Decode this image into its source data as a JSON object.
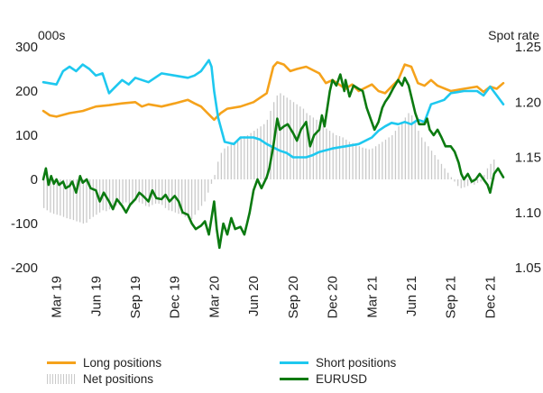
{
  "chart_data": {
    "type": "line",
    "left_axis_unit": "000s",
    "right_axis_unit": "Spot rate",
    "left_ylim": [
      -200,
      300
    ],
    "left_ticks": [
      "300",
      "200",
      "100",
      "0",
      "-100",
      "-200"
    ],
    "right_ylim": [
      1.05,
      1.25
    ],
    "right_ticks": [
      "1.25",
      "1.20",
      "1.15",
      "1.10",
      "1.05"
    ],
    "x_range": [
      0,
      35
    ],
    "x_ticks": [
      {
        "label": "Mar 19",
        "x": 1
      },
      {
        "label": "Jun 19",
        "x": 4
      },
      {
        "label": "Sep 19",
        "x": 7
      },
      {
        "label": "Dec 19",
        "x": 10
      },
      {
        "label": "Mar 20",
        "x": 13
      },
      {
        "label": "Jun 20",
        "x": 16
      },
      {
        "label": "Sep 20",
        "x": 19
      },
      {
        "label": "Dec 20",
        "x": 22
      },
      {
        "label": "Mar 21",
        "x": 25
      },
      {
        "label": "Jun 21",
        "x": 28
      },
      {
        "label": "Sep 21",
        "x": 31
      },
      {
        "label": "Dec 21",
        "x": 34
      }
    ],
    "series": [
      {
        "name": "Long positions",
        "axis": "left",
        "color": "#f5a21b",
        "points": [
          [
            0,
            155
          ],
          [
            0.5,
            145
          ],
          [
            1,
            142
          ],
          [
            2,
            150
          ],
          [
            3,
            155
          ],
          [
            4,
            165
          ],
          [
            5,
            168
          ],
          [
            6,
            172
          ],
          [
            7,
            175
          ],
          [
            7.5,
            165
          ],
          [
            8,
            170
          ],
          [
            9,
            165
          ],
          [
            10,
            172
          ],
          [
            11,
            180
          ],
          [
            11.5,
            172
          ],
          [
            12,
            165
          ],
          [
            12.5,
            150
          ],
          [
            13,
            135
          ],
          [
            13.5,
            150
          ],
          [
            14,
            160
          ],
          [
            15,
            165
          ],
          [
            16,
            175
          ],
          [
            17,
            195
          ],
          [
            17.5,
            255
          ],
          [
            17.8,
            265
          ],
          [
            18.3,
            260
          ],
          [
            18.8,
            245
          ],
          [
            19.3,
            250
          ],
          [
            20,
            255
          ],
          [
            21,
            240
          ],
          [
            21.5,
            218
          ],
          [
            22,
            225
          ],
          [
            23,
            205
          ],
          [
            23.5,
            215
          ],
          [
            24,
            200
          ],
          [
            25,
            215
          ],
          [
            25.5,
            200
          ],
          [
            26,
            195
          ],
          [
            26.5,
            210
          ],
          [
            27,
            225
          ],
          [
            27.5,
            260
          ],
          [
            28,
            255
          ],
          [
            28.5,
            218
          ],
          [
            29,
            212
          ],
          [
            29.5,
            225
          ],
          [
            30,
            212
          ],
          [
            31,
            200
          ],
          [
            32,
            205
          ],
          [
            33,
            210
          ],
          [
            33.5,
            198
          ],
          [
            34,
            210
          ],
          [
            34.5,
            205
          ],
          [
            35,
            218
          ]
        ]
      },
      {
        "name": "Short positions",
        "axis": "left",
        "color": "#1ec8ef",
        "points": [
          [
            0,
            220
          ],
          [
            1,
            215
          ],
          [
            1.5,
            245
          ],
          [
            2,
            255
          ],
          [
            2.5,
            245
          ],
          [
            3,
            260
          ],
          [
            3.5,
            250
          ],
          [
            4,
            235
          ],
          [
            4.5,
            240
          ],
          [
            5,
            195
          ],
          [
            5.5,
            210
          ],
          [
            6,
            225
          ],
          [
            6.5,
            215
          ],
          [
            7,
            230
          ],
          [
            8,
            220
          ],
          [
            9,
            240
          ],
          [
            10,
            235
          ],
          [
            11,
            230
          ],
          [
            11.5,
            235
          ],
          [
            12,
            245
          ],
          [
            12.6,
            270
          ],
          [
            12.8,
            255
          ],
          [
            13,
            200
          ],
          [
            13.3,
            140
          ],
          [
            13.8,
            85
          ],
          [
            14.5,
            80
          ],
          [
            15,
            95
          ],
          [
            16,
            95
          ],
          [
            16.5,
            90
          ],
          [
            17,
            80
          ],
          [
            18,
            65
          ],
          [
            18.5,
            60
          ],
          [
            19,
            50
          ],
          [
            20,
            50
          ],
          [
            20.5,
            55
          ],
          [
            21,
            62
          ],
          [
            22,
            70
          ],
          [
            23,
            75
          ],
          [
            24,
            80
          ],
          [
            25,
            95
          ],
          [
            25.5,
            110
          ],
          [
            26,
            120
          ],
          [
            26.5,
            128
          ],
          [
            27,
            125
          ],
          [
            27.5,
            130
          ],
          [
            28,
            125
          ],
          [
            28.5,
            135
          ],
          [
            29,
            130
          ],
          [
            29.5,
            170
          ],
          [
            30,
            175
          ],
          [
            30.5,
            180
          ],
          [
            31,
            195
          ],
          [
            32,
            200
          ],
          [
            33,
            200
          ],
          [
            33.5,
            190
          ],
          [
            34,
            210
          ],
          [
            34.5,
            190
          ],
          [
            35,
            170
          ]
        ]
      },
      {
        "name": "EURUSD",
        "axis": "right",
        "color": "#0b7a10",
        "points": [
          [
            0,
            1.13
          ],
          [
            0.2,
            1.14
          ],
          [
            0.4,
            1.125
          ],
          [
            0.6,
            1.133
          ],
          [
            0.8,
            1.126
          ],
          [
            1,
            1.13
          ],
          [
            1.2,
            1.125
          ],
          [
            1.5,
            1.128
          ],
          [
            1.7,
            1.122
          ],
          [
            2,
            1.124
          ],
          [
            2.2,
            1.128
          ],
          [
            2.5,
            1.118
          ],
          [
            2.8,
            1.133
          ],
          [
            3,
            1.127
          ],
          [
            3.3,
            1.13
          ],
          [
            3.6,
            1.122
          ],
          [
            4,
            1.12
          ],
          [
            4.3,
            1.11
          ],
          [
            4.6,
            1.118
          ],
          [
            5,
            1.11
          ],
          [
            5.3,
            1.103
          ],
          [
            5.6,
            1.112
          ],
          [
            6,
            1.106
          ],
          [
            6.3,
            1.1
          ],
          [
            6.6,
            1.107
          ],
          [
            7,
            1.112
          ],
          [
            7.3,
            1.118
          ],
          [
            7.6,
            1.115
          ],
          [
            8,
            1.11
          ],
          [
            8.3,
            1.12
          ],
          [
            8.6,
            1.113
          ],
          [
            9,
            1.112
          ],
          [
            9.3,
            1.116
          ],
          [
            9.6,
            1.11
          ],
          [
            10,
            1.115
          ],
          [
            10.3,
            1.11
          ],
          [
            10.6,
            1.1
          ],
          [
            11,
            1.098
          ],
          [
            11.3,
            1.09
          ],
          [
            11.6,
            1.085
          ],
          [
            12,
            1.088
          ],
          [
            12.3,
            1.092
          ],
          [
            12.6,
            1.08
          ],
          [
            12.8,
            1.095
          ],
          [
            13,
            1.11
          ],
          [
            13.2,
            1.085
          ],
          [
            13.4,
            1.068
          ],
          [
            13.7,
            1.09
          ],
          [
            14,
            1.08
          ],
          [
            14.3,
            1.095
          ],
          [
            14.6,
            1.085
          ],
          [
            15,
            1.087
          ],
          [
            15.3,
            1.08
          ],
          [
            15.5,
            1.09
          ],
          [
            15.7,
            1.1
          ],
          [
            16,
            1.12
          ],
          [
            16.3,
            1.13
          ],
          [
            16.6,
            1.122
          ],
          [
            17,
            1.132
          ],
          [
            17.2,
            1.14
          ],
          [
            17.5,
            1.16
          ],
          [
            17.8,
            1.185
          ],
          [
            18,
            1.175
          ],
          [
            18.3,
            1.178
          ],
          [
            18.6,
            1.18
          ],
          [
            19,
            1.172
          ],
          [
            19.3,
            1.165
          ],
          [
            19.6,
            1.175
          ],
          [
            20,
            1.182
          ],
          [
            20.3,
            1.16
          ],
          [
            20.6,
            1.17
          ],
          [
            21,
            1.175
          ],
          [
            21.2,
            1.188
          ],
          [
            21.4,
            1.178
          ],
          [
            21.8,
            1.21
          ],
          [
            22,
            1.22
          ],
          [
            22.3,
            1.215
          ],
          [
            22.6,
            1.225
          ],
          [
            22.9,
            1.21
          ],
          [
            23,
            1.22
          ],
          [
            23.3,
            1.205
          ],
          [
            23.6,
            1.215
          ],
          [
            24,
            1.212
          ],
          [
            24.3,
            1.21
          ],
          [
            24.6,
            1.195
          ],
          [
            24.9,
            1.185
          ],
          [
            25.2,
            1.175
          ],
          [
            25.5,
            1.182
          ],
          [
            25.8,
            1.195
          ],
          [
            26,
            1.2
          ],
          [
            26.3,
            1.205
          ],
          [
            26.6,
            1.212
          ],
          [
            27,
            1.22
          ],
          [
            27.3,
            1.215
          ],
          [
            27.5,
            1.222
          ],
          [
            27.8,
            1.215
          ],
          [
            28,
            1.205
          ],
          [
            28.3,
            1.19
          ],
          [
            28.6,
            1.18
          ],
          [
            29,
            1.18
          ],
          [
            29.2,
            1.185
          ],
          [
            29.4,
            1.175
          ],
          [
            29.7,
            1.17
          ],
          [
            30,
            1.175
          ],
          [
            30.3,
            1.168
          ],
          [
            30.6,
            1.16
          ],
          [
            31,
            1.16
          ],
          [
            31.3,
            1.155
          ],
          [
            31.6,
            1.145
          ],
          [
            31.8,
            1.135
          ],
          [
            32,
            1.13
          ],
          [
            32.3,
            1.135
          ],
          [
            32.6,
            1.128
          ],
          [
            32.9,
            1.13
          ],
          [
            33.2,
            1.135
          ],
          [
            33.5,
            1.13
          ],
          [
            33.8,
            1.125
          ],
          [
            34,
            1.118
          ],
          [
            34.3,
            1.135
          ],
          [
            34.6,
            1.14
          ],
          [
            35,
            1.132
          ]
        ]
      },
      {
        "name": "Net positions",
        "axis": "left",
        "type": "bar",
        "color": "#c9c9c9",
        "x_start": 0,
        "x_step": 0.25,
        "values": [
          -65,
          -70,
          -75,
          -78,
          -80,
          -82,
          -85,
          -88,
          -90,
          -92,
          -95,
          -97,
          -100,
          -98,
          -90,
          -85,
          -80,
          -75,
          -70,
          -72,
          -68,
          -65,
          -60,
          -58,
          -55,
          -52,
          -55,
          -50,
          -48,
          -52,
          -55,
          -60,
          -62,
          -58,
          -55,
          -55,
          -58,
          -65,
          -70,
          -72,
          -75,
          -78,
          -80,
          -85,
          -88,
          -90,
          -80,
          -70,
          -60,
          -50,
          -30,
          -10,
          10,
          40,
          60,
          70,
          75,
          80,
          85,
          90,
          95,
          98,
          100,
          105,
          110,
          115,
          120,
          125,
          135,
          155,
          175,
          190,
          195,
          190,
          185,
          180,
          175,
          170,
          165,
          160,
          150,
          145,
          140,
          135,
          130,
          120,
          115,
          110,
          105,
          100,
          98,
          95,
          90,
          85,
          82,
          78,
          75,
          72,
          70,
          68,
          70,
          75,
          80,
          85,
          90,
          95,
          100,
          110,
          120,
          130,
          140,
          150,
          145,
          130,
          110,
          95,
          85,
          75,
          65,
          55,
          45,
          35,
          25,
          15,
          5,
          -5,
          -15,
          -20,
          -18,
          -15,
          -10,
          -12,
          -8,
          -5,
          10,
          25,
          35,
          45
        ]
      }
    ],
    "legend": [
      {
        "label": "Long positions",
        "style": "line",
        "color": "#f5a21b"
      },
      {
        "label": "Short positions",
        "style": "line",
        "color": "#1ec8ef"
      },
      {
        "label": "Net positions",
        "style": "bars",
        "color": "#c9c9c9"
      },
      {
        "label": "EURUSD",
        "style": "line",
        "color": "#0b7a10"
      }
    ]
  }
}
